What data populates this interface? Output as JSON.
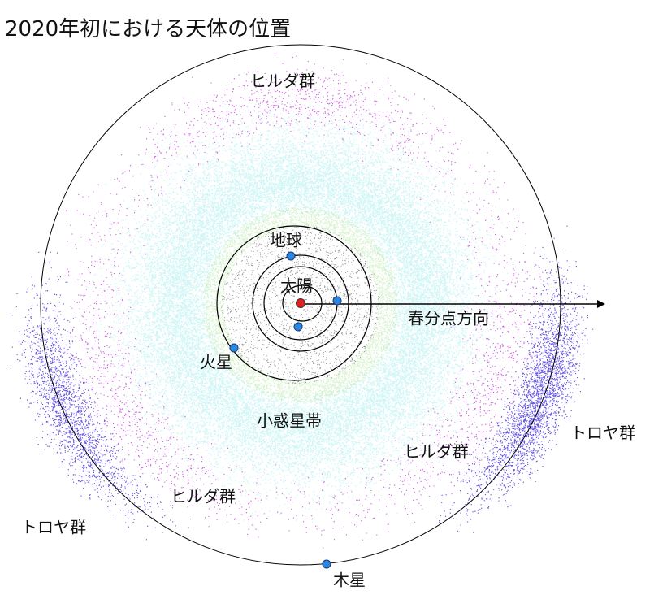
{
  "title": "2020年初における天体の位置",
  "labels": [
    {
      "text": "ヒルダ群"
    },
    {
      "text": "地球"
    },
    {
      "text": "太陽"
    },
    {
      "text": "春分点方向"
    },
    {
      "text": "火星"
    },
    {
      "text": "小惑星帯"
    },
    {
      "text": "ヒルダ群"
    },
    {
      "text": "トロヤ群"
    },
    {
      "text": "ヒルダ群"
    },
    {
      "text": "トロヤ群"
    },
    {
      "text": "木星"
    }
  ]
}
